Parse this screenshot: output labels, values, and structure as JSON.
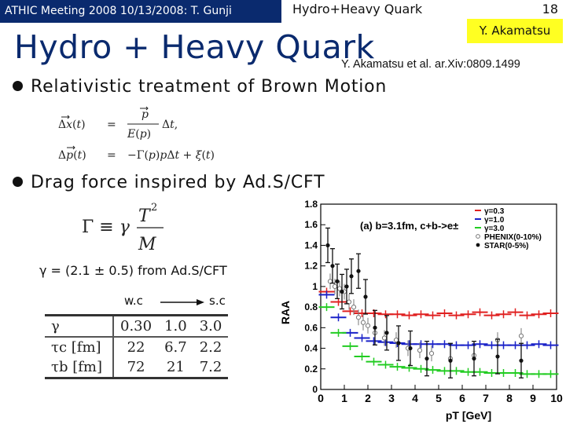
{
  "header": {
    "left": "ATHIC Meeting 2008 10/13/2008: T. Gunji",
    "center": "Hydro+Heavy Quark",
    "page_number": "18",
    "author": "Y. Akamatsu"
  },
  "title": "Hydro + Heavy Quark",
  "reference": "Y. Akamatsu et al. ar.Xiv:0809.1499",
  "bullets": [
    "Relativistic treatment of Brown Motion",
    "Drag force inspired by Ad.S/CFT"
  ],
  "gamma_line": "γ = (2.1 ± 0.5) from Ad.S/CFT",
  "coupling": {
    "weak": "w.c",
    "strong": "s.c"
  },
  "table": {
    "rows": [
      {
        "symbol": "γ",
        "values": [
          "0.30",
          "1.0",
          "3.0"
        ]
      },
      {
        "symbol": "τc [fm]",
        "values": [
          "22",
          "6.7",
          "2.2"
        ]
      },
      {
        "symbol": "τb [fm]",
        "values": [
          "72",
          "21",
          "7.2"
        ]
      }
    ]
  },
  "colors": {
    "header_bg": "#0a2a6e",
    "title": "#0a2a6e",
    "author_bg": "#ffff22"
  },
  "chart_data": {
    "type": "scatter",
    "annotation": "(a) b=3.1fm, c+b->e±",
    "xlabel": "pT [GeV]",
    "ylabel": "RAA",
    "xlim": [
      0,
      10
    ],
    "ylim": [
      0,
      1.8
    ],
    "xticks": [
      "0",
      "1",
      "2",
      "3",
      "4",
      "5",
      "6",
      "7",
      "8",
      "9",
      "10"
    ],
    "yticks": [
      "0",
      "0.2",
      "0.4",
      "0.6",
      "0.8",
      "1",
      "1.2",
      "1.4",
      "1.6",
      "1.8"
    ],
    "legend": [
      "γ=0.3",
      "γ=1.0",
      "γ=3.0",
      "PHENIX(0-10%)",
      "STAR(0-5%)"
    ],
    "series": [
      {
        "name": "γ=0.3",
        "color": "#e02020",
        "x": [
          0.25,
          0.75,
          1.25,
          1.75,
          2.25,
          2.75,
          3.25,
          3.75,
          4.25,
          4.75,
          5.25,
          5.75,
          6.25,
          6.75,
          7.25,
          7.75,
          8.25,
          8.75,
          9.25,
          9.75
        ],
        "y": [
          0.95,
          0.85,
          0.76,
          0.74,
          0.74,
          0.73,
          0.73,
          0.72,
          0.73,
          0.72,
          0.74,
          0.72,
          0.73,
          0.75,
          0.72,
          0.73,
          0.75,
          0.72,
          0.73,
          0.74
        ]
      },
      {
        "name": "γ=1.0",
        "color": "#1a22c8",
        "x": [
          0.25,
          0.75,
          1.25,
          1.75,
          2.25,
          2.75,
          3.25,
          3.75,
          4.25,
          4.75,
          5.25,
          5.75,
          6.25,
          6.75,
          7.25,
          7.75,
          8.25,
          8.75,
          9.25,
          9.75
        ],
        "y": [
          0.92,
          0.7,
          0.55,
          0.5,
          0.47,
          0.46,
          0.45,
          0.44,
          0.44,
          0.44,
          0.44,
          0.43,
          0.43,
          0.44,
          0.43,
          0.43,
          0.43,
          0.43,
          0.44,
          0.43
        ]
      },
      {
        "name": "γ=3.0",
        "color": "#22cc22",
        "x": [
          0.25,
          0.75,
          1.25,
          1.75,
          2.25,
          2.75,
          3.25,
          3.75,
          4.25,
          4.75,
          5.25,
          5.75,
          6.25,
          6.75,
          7.25,
          7.75,
          8.25,
          8.75,
          9.25,
          9.75
        ],
        "y": [
          0.8,
          0.55,
          0.42,
          0.32,
          0.27,
          0.24,
          0.22,
          0.21,
          0.2,
          0.19,
          0.18,
          0.18,
          0.17,
          0.17,
          0.16,
          0.16,
          0.16,
          0.15,
          0.15,
          0.15
        ]
      },
      {
        "name": "PHENIX(0-10%)",
        "color": "#777777",
        "x": [
          0.4,
          0.6,
          0.8,
          1.0,
          1.2,
          1.4,
          1.6,
          1.8,
          2.0,
          2.3,
          2.7,
          3.2,
          3.7,
          4.2,
          4.7,
          5.5,
          6.5,
          7.5,
          8.5
        ],
        "y": [
          1.05,
          1.0,
          0.98,
          0.95,
          0.85,
          0.8,
          0.7,
          0.65,
          0.62,
          0.55,
          0.5,
          0.48,
          0.4,
          0.38,
          0.35,
          0.3,
          0.33,
          0.48,
          0.52
        ]
      },
      {
        "name": "STAR(0-5%)",
        "color": "#111111",
        "x": [
          0.3,
          0.5,
          0.7,
          0.9,
          1.1,
          1.3,
          1.6,
          1.9,
          2.3,
          2.8,
          3.3,
          3.8,
          4.5,
          5.5,
          6.5,
          7.5,
          8.5
        ],
        "y": [
          1.4,
          1.2,
          1.05,
          0.95,
          1.0,
          1.1,
          1.15,
          0.9,
          0.6,
          0.55,
          0.45,
          0.4,
          0.3,
          0.28,
          0.3,
          0.32,
          0.28
        ]
      }
    ]
  }
}
